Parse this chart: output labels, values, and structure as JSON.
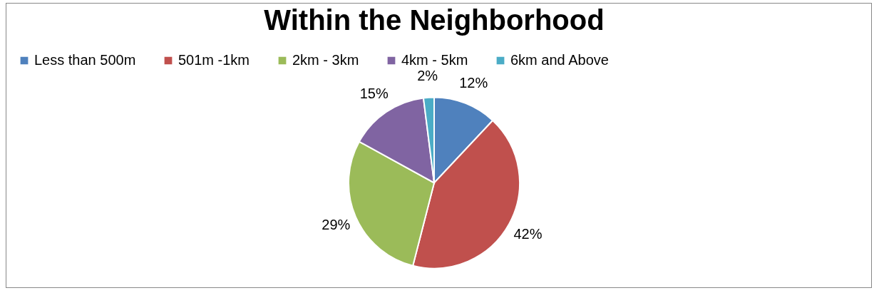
{
  "chart_data": {
    "type": "pie",
    "title": "Within the Neighborhood",
    "categories": [
      "Less than 500m",
      "501m -1km",
      "2km - 3km",
      "4km - 5km",
      "6km and Above"
    ],
    "values": [
      12,
      42,
      29,
      15,
      2
    ],
    "colors": [
      "#4f81bd",
      "#c0504d",
      "#9bbb59",
      "#8064a2",
      "#4bacc6"
    ],
    "value_labels": [
      "12%",
      "42%",
      "29%",
      "15%",
      "2%"
    ],
    "legend": "top"
  }
}
